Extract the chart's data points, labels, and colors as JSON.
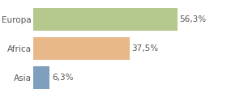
{
  "categories": [
    "Europa",
    "Africa",
    "Asia"
  ],
  "values": [
    56.3,
    37.5,
    6.3
  ],
  "bar_colors": [
    "#b5c98e",
    "#e8b88a",
    "#7f9fbf"
  ],
  "labels": [
    "56,3%",
    "37,5%",
    "6,3%"
  ],
  "background_color": "#ffffff",
  "xlim": [
    0,
    75
  ],
  "bar_height": 0.78,
  "label_fontsize": 7.5,
  "tick_fontsize": 7.5,
  "grid_color": "#e0e0e0",
  "text_color": "#555555"
}
